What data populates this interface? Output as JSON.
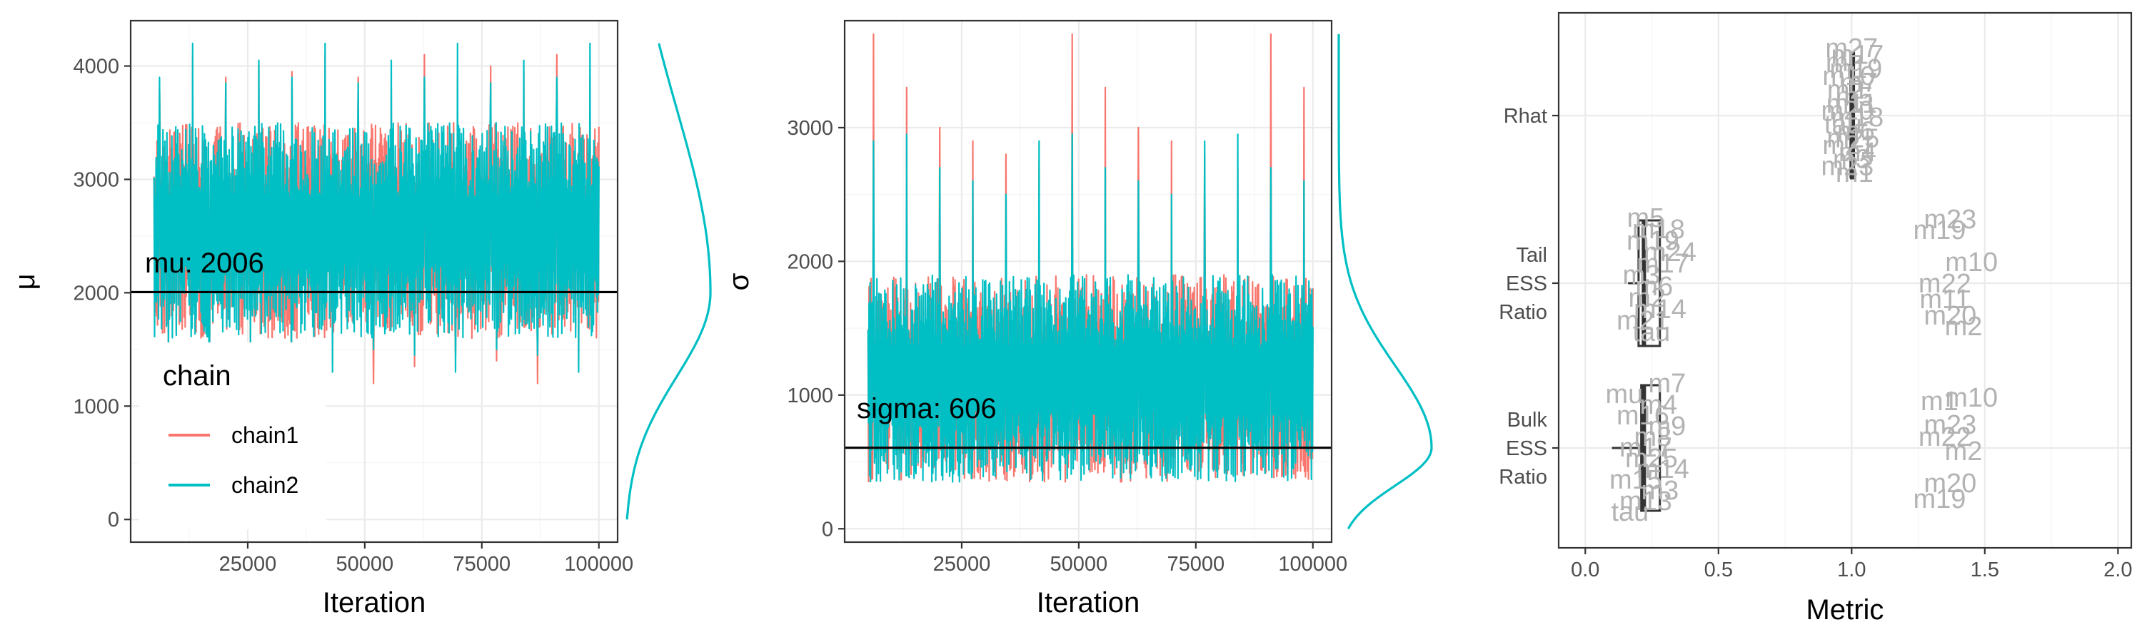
{
  "chart_data": [
    {
      "type": "line",
      "ylabel": "μ",
      "xlabel": "Iteration",
      "xlim": [
        0,
        104000
      ],
      "ylim": [
        -200,
        4400
      ],
      "x_ticks": [
        25000,
        50000,
        75000,
        100000
      ],
      "y_ticks": [
        0,
        1000,
        2000,
        3000,
        4000
      ],
      "series": [
        {
          "name": "chain1",
          "color": "#F8766D",
          "x_range": [
            5000,
            100000
          ],
          "typical_range": [
            1600,
            3500
          ],
          "spikes_max": [
            3800,
            4100,
            3900,
            4000,
            3950,
            4100,
            3900
          ],
          "spikes_min": [
            1400,
            1200,
            1350,
            1450
          ]
        },
        {
          "name": "chain2",
          "color": "#00BFC4",
          "x_range": [
            5000,
            100000
          ],
          "typical_range": [
            1600,
            3500
          ],
          "spikes_max": [
            3900,
            4200,
            3850,
            4050
          ],
          "spikes_min": [
            1450,
            1300,
            1500
          ]
        }
      ],
      "hline": {
        "value": 2006,
        "label": "mu: 2006"
      },
      "density": {
        "color": "#00BFC4",
        "mode": 2006,
        "low": 0,
        "high": 4200
      },
      "legend": {
        "title": "chain",
        "position": "bottom-left inside",
        "entries": [
          "chain1",
          "chain2"
        ]
      }
    },
    {
      "type": "line",
      "ylabel": "σ",
      "xlabel": "Iteration",
      "xlim": [
        0,
        104000
      ],
      "ylim": [
        -100,
        3800
      ],
      "x_ticks": [
        25000,
        50000,
        75000,
        100000
      ],
      "y_ticks": [
        0,
        1000,
        2000,
        3000
      ],
      "series": [
        {
          "name": "chain1",
          "color": "#F8766D",
          "x_range": [
            5000,
            100000
          ],
          "typical_range": [
            350,
            1900
          ],
          "spikes_max": [
            3700,
            3300,
            3000,
            2900,
            2800,
            2700
          ]
        },
        {
          "name": "chain2",
          "color": "#00BFC4",
          "x_range": [
            5000,
            100000
          ],
          "typical_range": [
            350,
            1900
          ],
          "spikes_max": [
            2900,
            2950,
            2700,
            2600,
            2500
          ]
        }
      ],
      "hline": {
        "value": 606,
        "label": "sigma: 606"
      },
      "density": {
        "color": "#00BFC4",
        "mode": 606,
        "low": 0,
        "high": 3700
      }
    },
    {
      "type": "boxplot",
      "xlabel": "Metric",
      "xlim": [
        -0.1,
        2.05
      ],
      "x_ticks": [
        0.0,
        0.5,
        1.0,
        1.5,
        2.0
      ],
      "x_tick_labels": [
        "0.0",
        "0.5",
        "1.0",
        "1.5",
        "2.0"
      ],
      "categories": [
        {
          "label": [
            "Rhat"
          ],
          "box": {
            "q1": 0.998,
            "median": 1.0,
            "q3": 1.002,
            "whisker_low": 0.995,
            "whisker_high": 1.005
          }
        },
        {
          "label": [
            "Tail",
            "ESS",
            "Ratio"
          ],
          "box": {
            "q1": 0.2,
            "median": 0.22,
            "q3": 0.28,
            "whisker_low": 0.16,
            "whisker_high": 0.28
          }
        },
        {
          "label": [
            "Bulk",
            "ESS",
            "Ratio"
          ],
          "box": {
            "q1": 0.21,
            "median": 0.22,
            "q3": 0.28,
            "whisker_low": 0.1,
            "whisker_high": 0.28
          }
        }
      ],
      "point_labels": {
        "rhat": [
          "m27",
          "m17",
          "mu",
          "m19",
          "m10",
          "m7",
          "m2",
          "m5",
          "m11",
          "m20",
          "m18",
          "tau",
          "m6",
          "m25",
          "m21",
          "m4",
          "m3",
          "m23",
          "m1"
        ],
        "tail_cluster": [
          "m5",
          "m18",
          "m19",
          "m24",
          "m17",
          "m3",
          "m6",
          "m2",
          "m14",
          "m21",
          "tau"
        ],
        "tail_outliers": [
          {
            "label": "m23",
            "x": 1.37
          },
          {
            "label": "m19",
            "x": 1.33
          },
          {
            "label": "m10",
            "x": 1.45
          },
          {
            "label": "m22",
            "x": 1.35
          },
          {
            "label": "m11",
            "x": 1.35
          },
          {
            "label": "m20",
            "x": 1.37
          },
          {
            "label": "m2",
            "x": 1.42
          }
        ],
        "bulk_cluster": [
          "m7",
          "mu",
          "m4",
          "m16",
          "m9",
          "m8",
          "m17",
          "m25",
          "m14",
          "m15",
          "m3",
          "m13",
          "tau"
        ],
        "bulk_outliers": [
          {
            "label": "m10",
            "x": 1.45
          },
          {
            "label": "m1",
            "x": 1.33
          },
          {
            "label": "m23",
            "x": 1.37
          },
          {
            "label": "m22",
            "x": 1.35
          },
          {
            "label": "m2",
            "x": 1.42
          },
          {
            "label": "m20",
            "x": 1.37
          },
          {
            "label": "m19",
            "x": 1.33
          }
        ]
      }
    }
  ]
}
